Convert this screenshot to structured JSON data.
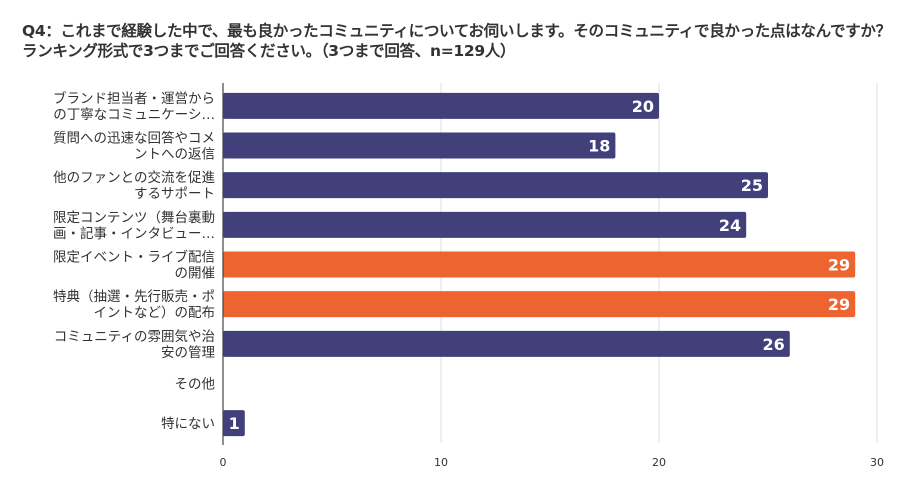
{
  "chart_data": {
    "type": "bar",
    "orientation": "horizontal",
    "title": "Q4：これまで経験した中で、最も良かったコミュニティについてお伺いします。そのコミュニティで良かった点はなんですか？ランキング形式で3つまでご回答ください。（3つまで回答、n=129人）",
    "categories": [
      [
        "ブランド担当者・運営から",
        "の丁寧なコミュニケーシ…"
      ],
      [
        "質問への迅速な回答やコメ",
        "ントへの返信"
      ],
      [
        "他のファンとの交流を促進",
        "するサポート"
      ],
      [
        "限定コンテンツ（舞台裏動",
        "画・記事・インタビュー…"
      ],
      [
        "限定イベント・ライブ配信",
        "の開催"
      ],
      [
        "特典（抽選・先行販売・ポ",
        "イントなど）の配布"
      ],
      [
        "コミュニティの雰囲気や治",
        "安の管理"
      ],
      [
        "その他"
      ],
      [
        "特にない"
      ]
    ],
    "values": [
      20,
      18,
      25,
      24,
      29,
      29,
      26,
      0,
      1
    ],
    "highlight": [
      false,
      false,
      false,
      false,
      true,
      true,
      false,
      false,
      false
    ],
    "xlim": [
      0,
      30
    ],
    "xticks": [
      "0",
      "10",
      "20",
      "30"
    ],
    "grid": true,
    "colors": {
      "default": "#41407a",
      "highlight": "#ee6430",
      "grid": "#dddddd",
      "axis": "#444444"
    }
  }
}
